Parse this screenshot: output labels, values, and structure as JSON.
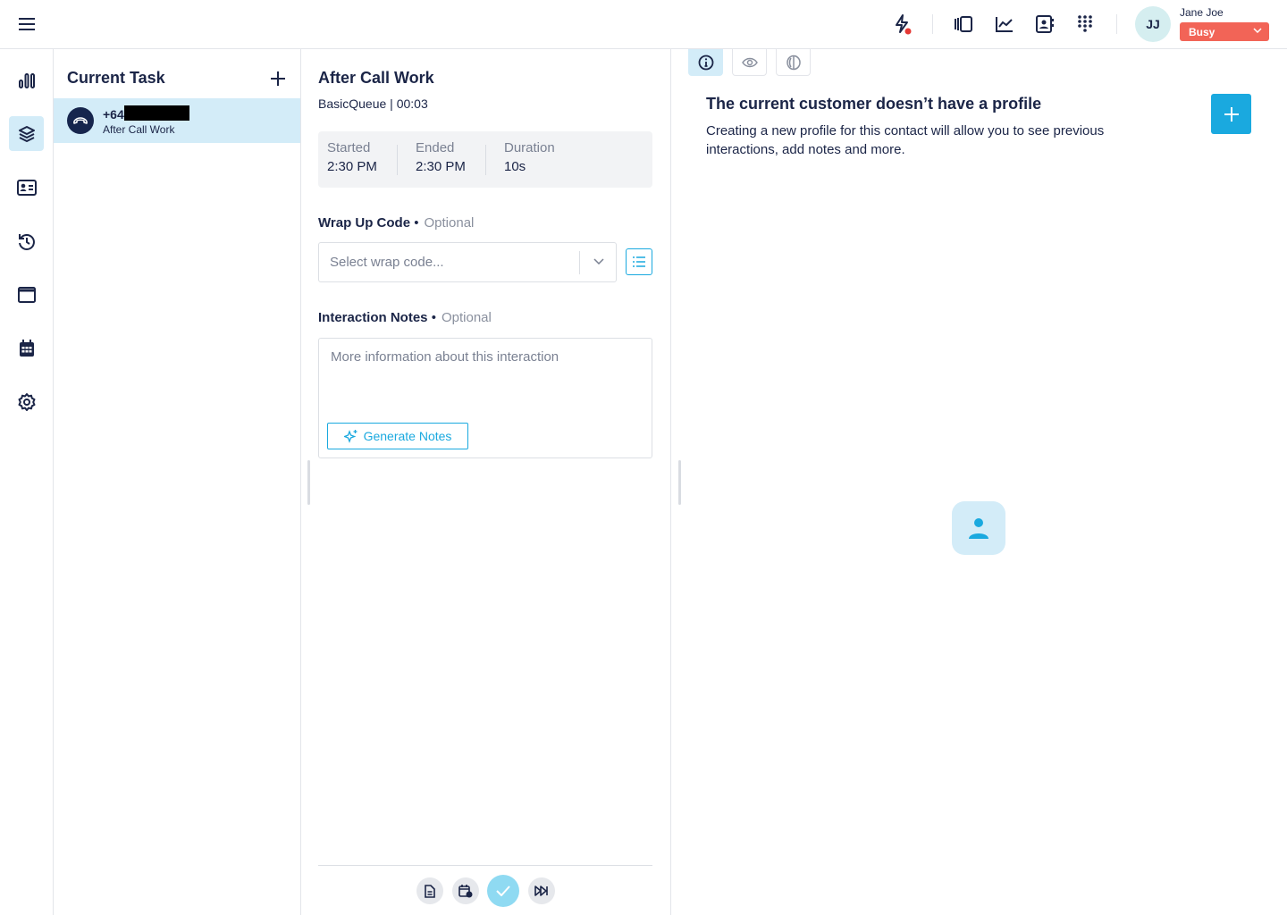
{
  "topbar": {
    "user_initials": "JJ",
    "user_name": "Jane Joe",
    "status": "Busy",
    "status_color": "#f26457",
    "icons": [
      "menu-icon",
      "lightning-icon",
      "panel-icon",
      "chart-line-icon",
      "contact-book-icon",
      "dialpad-icon"
    ]
  },
  "rail": {
    "items": [
      "stats",
      "tasks",
      "contacts",
      "history",
      "browser",
      "calendar",
      "settings"
    ],
    "active": "tasks"
  },
  "tasks": {
    "title": "Current Task",
    "items": [
      {
        "number_prefix": "+64",
        "status": "After Call Work"
      }
    ]
  },
  "work": {
    "title": "After Call Work",
    "queue": "BasicQueue",
    "timer": "00:03",
    "started_label": "Started",
    "started": "2:30 PM",
    "ended_label": "Ended",
    "ended": "2:30 PM",
    "duration_label": "Duration",
    "duration": "10s",
    "wrap_label": "Wrap Up Code",
    "optional": "Optional",
    "wrap_placeholder": "Select wrap code...",
    "notes_label": "Interaction Notes",
    "notes_placeholder": "More information about this interaction",
    "generate_label": "Generate Notes"
  },
  "profile": {
    "title": "The current customer doesn’t have a profile",
    "description": "Creating a new profile for this contact will allow you to see previous interactions, add notes and more.",
    "tabs": [
      "info",
      "view",
      "brain"
    ]
  },
  "colors": {
    "accent": "#1aa9df",
    "navy": "#1b2547",
    "highlight": "#d3ecf8"
  }
}
